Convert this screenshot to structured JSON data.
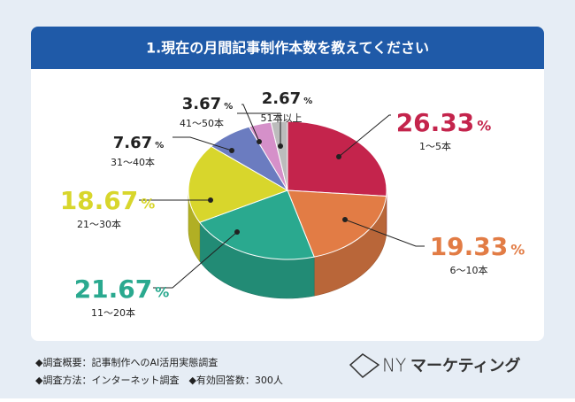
{
  "chart_data": {
    "type": "pie3d",
    "title": "1.現在の月間記事制作本数を教えてください",
    "categories": [
      "1～5本",
      "6～10本",
      "11～20本",
      "21～30本",
      "31～40本",
      "41～50本",
      "51本以上"
    ],
    "values": [
      26.33,
      19.33,
      21.67,
      18.67,
      7.67,
      3.67,
      2.67
    ],
    "unit": "%",
    "colors": [
      "#c4244c",
      "#e27c45",
      "#2aa98f",
      "#d8d62c",
      "#6b7cc0",
      "#d590c9",
      "#bcbcbc"
    ],
    "notes": [
      "◆調査概要：記事制作へのAI活用実態調査",
      "◆調査方法：インターネット調査　◆有効回答数：300人"
    ],
    "logo_mark": "NY",
    "logo_text": "マーケティング"
  }
}
